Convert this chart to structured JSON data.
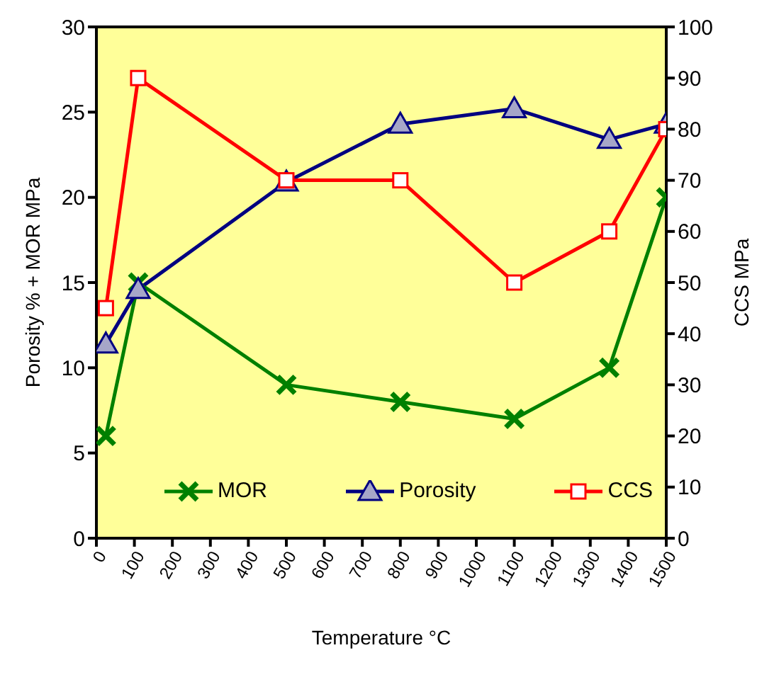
{
  "chart_data": {
    "type": "line",
    "xlabel": "Temperature  °C",
    "ylabel": "Porosity %   +  MOR  MPa",
    "y2label": "CCS MPa",
    "x": [
      25,
      110,
      500,
      800,
      1100,
      1350,
      1500
    ],
    "series": [
      {
        "name": "MOR",
        "color": "#008000",
        "marker": "cross",
        "values": [
          6,
          15,
          9,
          8,
          7,
          10,
          20
        ]
      },
      {
        "name": "Porosity",
        "color": "#000080",
        "marker": "triangle",
        "values": [
          11.4,
          14.6,
          20.9,
          24.3,
          25.2,
          23.4,
          24.3
        ]
      },
      {
        "name": "CCS",
        "color": "#ff0000",
        "marker": "square",
        "axis": "y2",
        "values": [
          45,
          90,
          70,
          70,
          50,
          60,
          80
        ]
      }
    ],
    "xlim": [
      0,
      1500
    ],
    "xticks": [
      0,
      100,
      200,
      300,
      400,
      500,
      600,
      700,
      800,
      900,
      1000,
      1100,
      1200,
      1300,
      1400,
      1500
    ],
    "ylim": [
      0,
      30
    ],
    "yticks": [
      0,
      5,
      10,
      15,
      20,
      25,
      30
    ],
    "y2lim": [
      0,
      100
    ],
    "y2ticks": [
      0,
      10,
      20,
      30,
      40,
      50,
      60,
      70,
      80,
      90,
      100
    ],
    "grid": false,
    "legend": "bottom",
    "line_style": "solid"
  }
}
